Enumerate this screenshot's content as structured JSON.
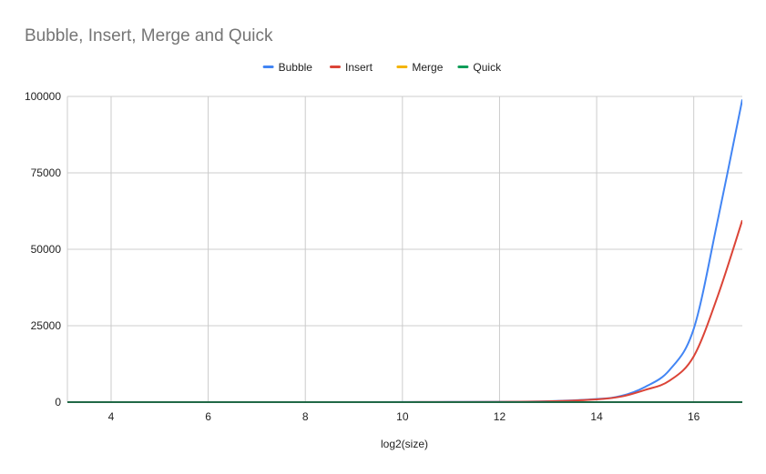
{
  "chart_data": {
    "type": "line",
    "title": "Bubble, Insert, Merge and Quick",
    "xlabel": "log2(size)",
    "ylabel": "",
    "xlim": [
      3.1,
      17
    ],
    "ylim": [
      0,
      100000
    ],
    "xticks": [
      4,
      6,
      8,
      10,
      12,
      14,
      16
    ],
    "yticks": [
      0,
      25000,
      50000,
      75000,
      100000
    ],
    "grid": true,
    "legend_position": "top",
    "x": [
      3,
      4,
      5,
      6,
      7,
      8,
      9,
      10,
      11,
      12,
      13,
      14,
      14.5,
      15,
      15.5,
      16,
      16.5,
      17
    ],
    "series": [
      {
        "name": "Bubble",
        "color": "#4285f4",
        "values": [
          0,
          0,
          0,
          0,
          0,
          0,
          0,
          20,
          60,
          100,
          300,
          1000,
          2000,
          5000,
          10500,
          24000,
          60000,
          99000
        ]
      },
      {
        "name": "Insert",
        "color": "#db4437",
        "values": [
          0,
          0,
          0,
          0,
          0,
          0,
          0,
          15,
          40,
          80,
          250,
          900,
          1800,
          4000,
          7000,
          15000,
          35000,
          59500
        ]
      },
      {
        "name": "Merge",
        "color": "#f4b400",
        "values": [
          0,
          0,
          0,
          0,
          0,
          0,
          0,
          0,
          0,
          0,
          0,
          0,
          0,
          0,
          0,
          0,
          0,
          0
        ]
      },
      {
        "name": "Quick",
        "color": "#0f9d58",
        "values": [
          0,
          0,
          0,
          0,
          0,
          0,
          0,
          0,
          0,
          0,
          0,
          0,
          0,
          0,
          0,
          0,
          0,
          0
        ]
      }
    ]
  }
}
